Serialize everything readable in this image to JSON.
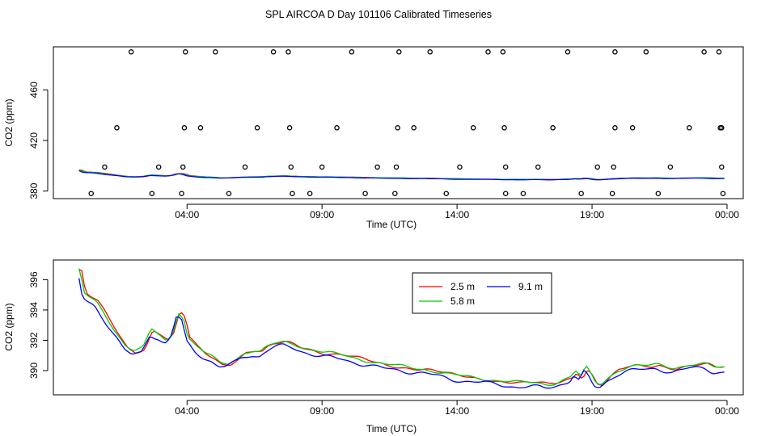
{
  "page_title": "SPL AIRCOA D  Day 101106  Calibrated Timeseries",
  "chart_data": [
    {
      "type": "scatter",
      "panel": "top",
      "xlabel": "Time (UTC)",
      "ylabel": "CO2 (ppm)",
      "x_unit": "hours since 00:00 UTC",
      "xlim": [
        -0.95,
        24.6
      ],
      "ylim": [
        374,
        494
      ],
      "xticks": [
        {
          "value": 4,
          "label": "04:00"
        },
        {
          "value": 9,
          "label": "09:00"
        },
        {
          "value": 14,
          "label": "14:00"
        },
        {
          "value": 19,
          "label": "19:00"
        },
        {
          "value": 24,
          "label": "00:00"
        }
      ],
      "yticks": [
        {
          "value": 380,
          "label": "380"
        },
        {
          "value": 420,
          "label": "420"
        },
        {
          "value": 460,
          "label": "460"
        }
      ],
      "calibration_points": [
        {
          "x": 1.93,
          "y": 490
        },
        {
          "x": 3.94,
          "y": 490
        },
        {
          "x": 5.05,
          "y": 490
        },
        {
          "x": 7.2,
          "y": 490
        },
        {
          "x": 7.75,
          "y": 490
        },
        {
          "x": 10.1,
          "y": 490
        },
        {
          "x": 11.85,
          "y": 490
        },
        {
          "x": 13.0,
          "y": 490
        },
        {
          "x": 15.15,
          "y": 490
        },
        {
          "x": 15.7,
          "y": 490
        },
        {
          "x": 18.1,
          "y": 490
        },
        {
          "x": 19.85,
          "y": 490
        },
        {
          "x": 21.0,
          "y": 490
        },
        {
          "x": 23.15,
          "y": 490
        },
        {
          "x": 23.7,
          "y": 490
        },
        {
          "x": 1.4,
          "y": 430
        },
        {
          "x": 3.9,
          "y": 430
        },
        {
          "x": 4.5,
          "y": 430
        },
        {
          "x": 6.6,
          "y": 430
        },
        {
          "x": 7.8,
          "y": 430
        },
        {
          "x": 9.55,
          "y": 430
        },
        {
          "x": 11.8,
          "y": 430
        },
        {
          "x": 12.4,
          "y": 430
        },
        {
          "x": 14.6,
          "y": 430
        },
        {
          "x": 15.75,
          "y": 430
        },
        {
          "x": 17.55,
          "y": 430
        },
        {
          "x": 19.85,
          "y": 430
        },
        {
          "x": 20.5,
          "y": 430
        },
        {
          "x": 22.6,
          "y": 430
        },
        {
          "x": 23.75,
          "y": 430
        },
        {
          "x": 23.8,
          "y": 430
        },
        {
          "x": 0.95,
          "y": 399
        },
        {
          "x": 2.95,
          "y": 399
        },
        {
          "x": 3.85,
          "y": 399
        },
        {
          "x": 6.15,
          "y": 399
        },
        {
          "x": 7.85,
          "y": 399
        },
        {
          "x": 9.0,
          "y": 399
        },
        {
          "x": 11.05,
          "y": 399
        },
        {
          "x": 11.75,
          "y": 399
        },
        {
          "x": 14.1,
          "y": 399
        },
        {
          "x": 15.8,
          "y": 399
        },
        {
          "x": 17.0,
          "y": 399
        },
        {
          "x": 19.2,
          "y": 399
        },
        {
          "x": 19.8,
          "y": 399
        },
        {
          "x": 21.9,
          "y": 399
        },
        {
          "x": 23.8,
          "y": 399
        },
        {
          "x": 0.45,
          "y": 378
        },
        {
          "x": 2.7,
          "y": 378
        },
        {
          "x": 3.8,
          "y": 378
        },
        {
          "x": 5.55,
          "y": 378
        },
        {
          "x": 7.9,
          "y": 378
        },
        {
          "x": 8.55,
          "y": 378
        },
        {
          "x": 10.6,
          "y": 378
        },
        {
          "x": 11.7,
          "y": 378
        },
        {
          "x": 13.6,
          "y": 378
        },
        {
          "x": 15.8,
          "y": 378
        },
        {
          "x": 16.45,
          "y": 378
        },
        {
          "x": 18.6,
          "y": 378
        },
        {
          "x": 19.75,
          "y": 378
        },
        {
          "x": 21.45,
          "y": 378
        },
        {
          "x": 23.85,
          "y": 378
        }
      ],
      "series": [
        {
          "name": "2.5 m",
          "color": "#ff0000"
        },
        {
          "name": "5.8 m",
          "color": "#00cd00"
        },
        {
          "name": "9.1 m",
          "color": "#0000ff"
        }
      ]
    },
    {
      "type": "line",
      "panel": "bottom",
      "xlabel": "Time (UTC)",
      "ylabel": "CO2 (ppm)",
      "x_unit": "hours since 00:00 UTC",
      "xlim": [
        -0.95,
        24.6
      ],
      "ylim": [
        388.4,
        397.3
      ],
      "xticks": [
        {
          "value": 4,
          "label": "04:00"
        },
        {
          "value": 9,
          "label": "09:00"
        },
        {
          "value": 14,
          "label": "14:00"
        },
        {
          "value": 19,
          "label": "19:00"
        },
        {
          "value": 24,
          "label": "00:00"
        }
      ],
      "yticks": [
        {
          "value": 390,
          "label": "390"
        },
        {
          "value": 392,
          "label": "392"
        },
        {
          "value": 394,
          "label": "394"
        },
        {
          "value": 396,
          "label": "396"
        }
      ],
      "base_curve": {
        "x": [
          0.0,
          0.15,
          0.3,
          0.6,
          0.9,
          1.3,
          1.7,
          2.0,
          2.35,
          2.65,
          2.95,
          3.2,
          3.4,
          3.55,
          3.65,
          3.85,
          4.0,
          4.3,
          4.6,
          4.9,
          5.2,
          5.5,
          5.8,
          6.1,
          6.4,
          6.7,
          6.9,
          7.1,
          7.3,
          7.6,
          7.9,
          8.2,
          8.6,
          9.0,
          9.4,
          9.8,
          10.3,
          10.8,
          11.3,
          11.8,
          12.3,
          12.8,
          13.3,
          13.8,
          14.3,
          14.8,
          15.3,
          15.8,
          16.3,
          16.8,
          17.3,
          17.6,
          17.9,
          18.2,
          18.35,
          18.55,
          18.75,
          18.95,
          19.1,
          19.3,
          19.6,
          19.9,
          20.2,
          20.5,
          20.8,
          21.1,
          21.4,
          21.7,
          22.0,
          22.3,
          22.6,
          22.9,
          23.2,
          23.5,
          23.9
        ],
        "y": [
          396.5,
          395.0,
          394.8,
          394.5,
          393.7,
          392.6,
          391.5,
          391.2,
          391.4,
          392.6,
          392.3,
          391.9,
          392.2,
          393.1,
          393.8,
          393.4,
          392.1,
          391.5,
          391.1,
          390.8,
          390.4,
          390.4,
          390.7,
          391.1,
          391.2,
          391.1,
          391.4,
          391.6,
          391.7,
          391.8,
          391.7,
          391.5,
          391.3,
          391.1,
          391.0,
          390.9,
          390.7,
          390.5,
          390.3,
          390.2,
          390.1,
          390.0,
          389.8,
          389.6,
          389.5,
          389.4,
          389.3,
          389.2,
          389.1,
          389.1,
          389.0,
          389.1,
          389.3,
          389.5,
          389.9,
          389.5,
          390.1,
          389.6,
          389.1,
          389.0,
          389.5,
          389.9,
          390.1,
          390.2,
          390.2,
          390.2,
          390.3,
          390.2,
          390.1,
          390.2,
          390.3,
          390.3,
          390.3,
          390.1,
          390.1
        ]
      },
      "series": [
        {
          "name": "2.5 m",
          "color": "#ff0000"
        },
        {
          "name": "5.8 m",
          "color": "#00cd00"
        },
        {
          "name": "9.1 m",
          "color": "#0000ff"
        }
      ],
      "legend": {
        "position": "top-right",
        "entries": [
          "2.5 m",
          "5.8 m",
          "9.1 m"
        ]
      }
    }
  ]
}
